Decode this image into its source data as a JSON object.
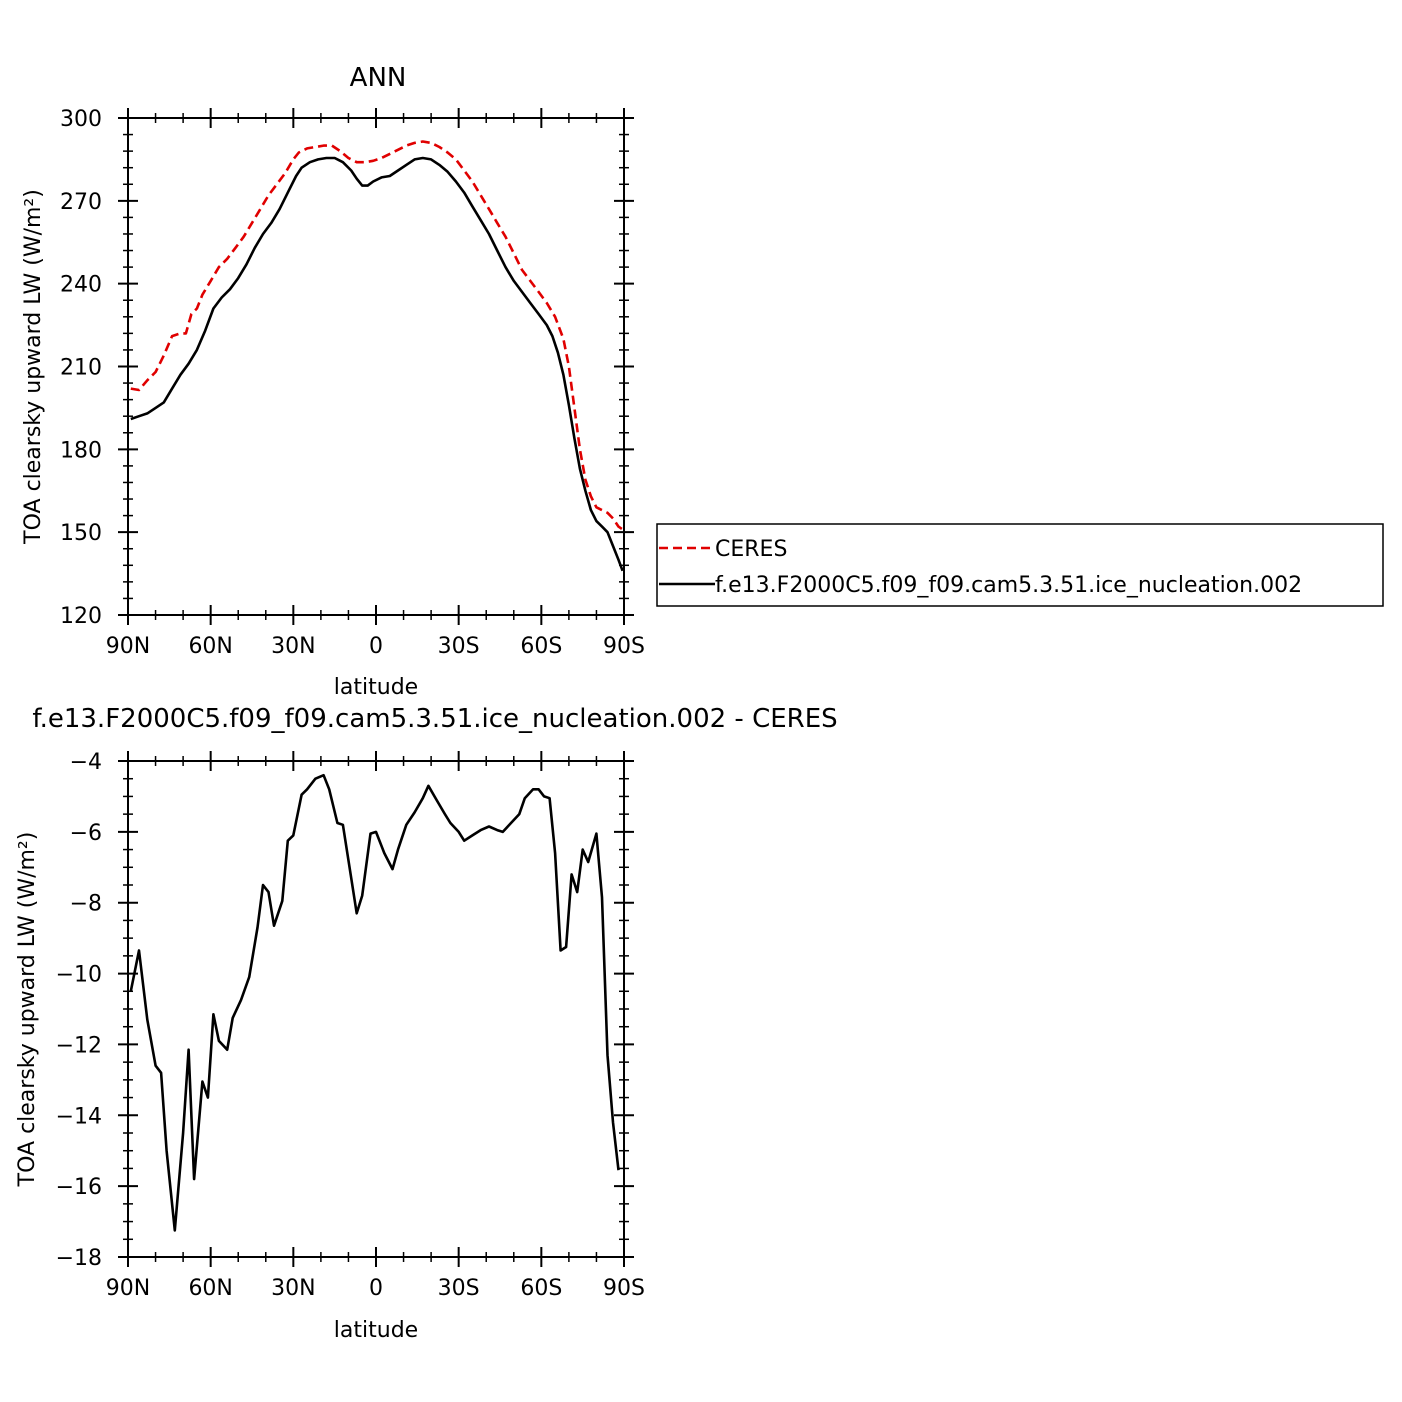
{
  "chart_data": [
    {
      "type": "line",
      "title": "ANN",
      "xlabel": "latitude",
      "ylabel": "TOA clearsky upward LW (W/m²)",
      "xlim": [
        -90,
        90
      ],
      "ylim": [
        120,
        300
      ],
      "x_ticks": [
        {
          "value": -90,
          "label": "90N"
        },
        {
          "value": -60,
          "label": "60N"
        },
        {
          "value": -30,
          "label": "30N"
        },
        {
          "value": 0,
          "label": "0"
        },
        {
          "value": 30,
          "label": "30S"
        },
        {
          "value": 60,
          "label": "60S"
        },
        {
          "value": 90,
          "label": "90S"
        }
      ],
      "y_ticks": [
        120,
        150,
        180,
        210,
        240,
        270,
        300
      ],
      "legend": {
        "placement": "right"
      },
      "series": [
        {
          "name": "CERES",
          "color": "#e00000",
          "style": "dashed",
          "points": [
            [
              -89,
              202
            ],
            [
              -86,
              201.5
            ],
            [
              -83,
              205
            ],
            [
              -80,
              208
            ],
            [
              -77,
              214
            ],
            [
              -74,
              221
            ],
            [
              -71,
              222
            ],
            [
              -69,
              222
            ],
            [
              -67,
              229
            ],
            [
              -65,
              231
            ],
            [
              -63,
              236
            ],
            [
              -60,
              241
            ],
            [
              -57,
              246
            ],
            [
              -54,
              249
            ],
            [
              -51,
              253
            ],
            [
              -48,
              257
            ],
            [
              -45,
              262
            ],
            [
              -42,
              267
            ],
            [
              -39,
              272
            ],
            [
              -36,
              276
            ],
            [
              -33,
              280
            ],
            [
              -30,
              285
            ],
            [
              -28,
              287.5
            ],
            [
              -25,
              289
            ],
            [
              -22,
              289.5
            ],
            [
              -19,
              290
            ],
            [
              -16,
              290
            ],
            [
              -13,
              288
            ],
            [
              -10,
              285.5
            ],
            [
              -7,
              284
            ],
            [
              -4,
              284
            ],
            [
              -1,
              284.5
            ],
            [
              2,
              285.5
            ],
            [
              5,
              287
            ],
            [
              8,
              288.5
            ],
            [
              11,
              290
            ],
            [
              14,
              291
            ],
            [
              17,
              291.5
            ],
            [
              20,
              291
            ],
            [
              23,
              289.5
            ],
            [
              26,
              287.5
            ],
            [
              29,
              285
            ],
            [
              32,
              281
            ],
            [
              35,
              277
            ],
            [
              38,
              272
            ],
            [
              41,
              267
            ],
            [
              44,
              262
            ],
            [
              47,
              257
            ],
            [
              50,
              251
            ],
            [
              53,
              245
            ],
            [
              56,
              241
            ],
            [
              59,
              237
            ],
            [
              62,
              233
            ],
            [
              65,
              228
            ],
            [
              68,
              220
            ],
            [
              70,
              210
            ],
            [
              72,
              195
            ],
            [
              74,
              180
            ],
            [
              76,
              169
            ],
            [
              78,
              163
            ],
            [
              80,
              159
            ],
            [
              82,
              158
            ],
            [
              84,
              157
            ],
            [
              86,
              155
            ],
            [
              88,
              152
            ],
            [
              89.5,
              151
            ]
          ]
        },
        {
          "name": "f.e13.F2000C5.f09_f09.cam5.3.51.ice_nucleation.002",
          "color": "#000000",
          "style": "solid",
          "points": [
            [
              -89,
              191
            ],
            [
              -86,
              192
            ],
            [
              -83,
              193
            ],
            [
              -80,
              195
            ],
            [
              -77,
              197
            ],
            [
              -74,
              202
            ],
            [
              -71,
              207
            ],
            [
              -68,
              211
            ],
            [
              -65,
              216
            ],
            [
              -62,
              223
            ],
            [
              -59,
              231
            ],
            [
              -56,
              235
            ],
            [
              -53,
              238
            ],
            [
              -50,
              242
            ],
            [
              -47,
              247
            ],
            [
              -44,
              253
            ],
            [
              -41,
              258
            ],
            [
              -38,
              262
            ],
            [
              -35,
              267
            ],
            [
              -32,
              273
            ],
            [
              -29,
              279
            ],
            [
              -27,
              282
            ],
            [
              -24,
              284
            ],
            [
              -21,
              285
            ],
            [
              -18,
              285.5
            ],
            [
              -15,
              285.5
            ],
            [
              -12,
              284
            ],
            [
              -9,
              281
            ],
            [
              -7,
              278
            ],
            [
              -5,
              275.5
            ],
            [
              -3,
              275.5
            ],
            [
              -1,
              277
            ],
            [
              2,
              278.5
            ],
            [
              5,
              279
            ],
            [
              8,
              281
            ],
            [
              11,
              283
            ],
            [
              14,
              285
            ],
            [
              17,
              285.5
            ],
            [
              20,
              285
            ],
            [
              23,
              283
            ],
            [
              26,
              280.5
            ],
            [
              29,
              277
            ],
            [
              32,
              273
            ],
            [
              35,
              268
            ],
            [
              38,
              263
            ],
            [
              41,
              258
            ],
            [
              44,
              252
            ],
            [
              47,
              246
            ],
            [
              50,
              241
            ],
            [
              53,
              237
            ],
            [
              56,
              233
            ],
            [
              59,
              229
            ],
            [
              62,
              225
            ],
            [
              64,
              221
            ],
            [
              66,
              215
            ],
            [
              68,
              207
            ],
            [
              70,
              196
            ],
            [
              72,
              184
            ],
            [
              74,
              173
            ],
            [
              76,
              165
            ],
            [
              78,
              158
            ],
            [
              80,
              154
            ],
            [
              82,
              152
            ],
            [
              84,
              150
            ],
            [
              86,
              145
            ],
            [
              88,
              140
            ],
            [
              89.5,
              136
            ]
          ]
        }
      ]
    },
    {
      "type": "line",
      "title": "f.e13.F2000C5.f09_f09.cam5.3.51.ice_nucleation.002 - CERES",
      "xlabel": "latitude",
      "ylabel": "TOA clearsky upward LW (W/m²)",
      "xlim": [
        -90,
        90
      ],
      "ylim": [
        -18,
        -4
      ],
      "x_ticks": [
        {
          "value": -90,
          "label": "90N"
        },
        {
          "value": -60,
          "label": "60N"
        },
        {
          "value": -30,
          "label": "30N"
        },
        {
          "value": 0,
          "label": "0"
        },
        {
          "value": 30,
          "label": "30S"
        },
        {
          "value": 60,
          "label": "60S"
        },
        {
          "value": 90,
          "label": "90S"
        }
      ],
      "y_ticks": [
        -18,
        -16,
        -14,
        -12,
        -10,
        -8,
        -6,
        -4
      ],
      "series": [
        {
          "color": "#000000",
          "style": "solid",
          "points": [
            [
              -89,
              -10.5
            ],
            [
              -86,
              -9.35
            ],
            [
              -83,
              -11.3
            ],
            [
              -80,
              -12.6
            ],
            [
              -78,
              -12.8
            ],
            [
              -76,
              -15.0
            ],
            [
              -73,
              -17.25
            ],
            [
              -70,
              -14.5
            ],
            [
              -68,
              -12.15
            ],
            [
              -66,
              -15.8
            ],
            [
              -63,
              -13.05
            ],
            [
              -61,
              -13.5
            ],
            [
              -59,
              -11.15
            ],
            [
              -57,
              -11.9
            ],
            [
              -54,
              -12.15
            ],
            [
              -52,
              -11.25
            ],
            [
              -49,
              -10.75
            ],
            [
              -46,
              -10.1
            ],
            [
              -43,
              -8.7
            ],
            [
              -41,
              -7.5
            ],
            [
              -39,
              -7.7
            ],
            [
              -37,
              -8.65
            ],
            [
              -34,
              -7.95
            ],
            [
              -32,
              -6.25
            ],
            [
              -30,
              -6.1
            ],
            [
              -27,
              -4.95
            ],
            [
              -25,
              -4.8
            ],
            [
              -22,
              -4.5
            ],
            [
              -19,
              -4.4
            ],
            [
              -17,
              -4.8
            ],
            [
              -14,
              -5.75
            ],
            [
              -12,
              -5.8
            ],
            [
              -9,
              -7.3
            ],
            [
              -7,
              -8.3
            ],
            [
              -5,
              -7.8
            ],
            [
              -2,
              -6.05
            ],
            [
              0,
              -6.0
            ],
            [
              3,
              -6.6
            ],
            [
              6,
              -7.05
            ],
            [
              8,
              -6.5
            ],
            [
              11,
              -5.8
            ],
            [
              14,
              -5.45
            ],
            [
              17,
              -5.05
            ],
            [
              19,
              -4.7
            ],
            [
              22,
              -5.1
            ],
            [
              25,
              -5.5
            ],
            [
              27,
              -5.75
            ],
            [
              30,
              -6.0
            ],
            [
              32,
              -6.25
            ],
            [
              35,
              -6.1
            ],
            [
              38,
              -5.95
            ],
            [
              41,
              -5.85
            ],
            [
              44,
              -5.95
            ],
            [
              46,
              -6.0
            ],
            [
              49,
              -5.75
            ],
            [
              52,
              -5.5
            ],
            [
              54,
              -5.05
            ],
            [
              57,
              -4.8
            ],
            [
              59,
              -4.8
            ],
            [
              61,
              -5.0
            ],
            [
              63,
              -5.05
            ],
            [
              65,
              -6.6
            ],
            [
              67,
              -9.35
            ],
            [
              69,
              -9.25
            ],
            [
              71,
              -7.2
            ],
            [
              73,
              -7.7
            ],
            [
              75,
              -6.5
            ],
            [
              77,
              -6.85
            ],
            [
              80,
              -6.05
            ],
            [
              82,
              -7.85
            ],
            [
              84,
              -12.3
            ],
            [
              86,
              -14.2
            ],
            [
              88,
              -15.55
            ]
          ]
        }
      ]
    }
  ]
}
